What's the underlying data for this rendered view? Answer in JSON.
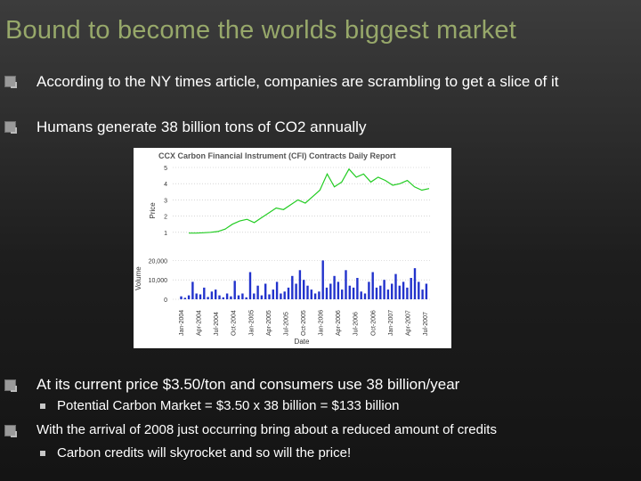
{
  "slide": {
    "title": "Bound to become the worlds biggest market",
    "bullets_top": [
      {
        "text": "According to the NY times article, companies are scrambling to get a slice of it"
      },
      {
        "text": "Humans generate 38 billion tons of CO2 annually"
      }
    ],
    "bullets_bottom": [
      {
        "text": "At its current price $3.50/ton and consumers use 38 billion/year"
      },
      {
        "text": "Potential Carbon Market = $3.50 x 38 billion = $133 billion"
      },
      {
        "text": "With the arrival of 2008 just occurring bring about a reduced amount of credits"
      },
      {
        "text": "Carbon credits will skyrocket and so will the price!"
      }
    ],
    "colors": {
      "title": "#97a86a",
      "price_line": "#22cc22",
      "volume_bars": "#2233cc",
      "bullet_marker": "#9a9a9a"
    }
  },
  "chart_data": {
    "type": "line",
    "title": "CCX Carbon Financial Instrument (CFI) Contracts Daily Report",
    "xlabel": "Date",
    "ylabel": "Price",
    "ylabel_volume": "Volume",
    "price_yticks": [
      "5",
      "4",
      "3",
      "2",
      "1"
    ],
    "price_ylim": [
      0,
      5
    ],
    "volume_yticks": [
      "20,000",
      "10,000",
      "0"
    ],
    "volume_ylim": [
      0,
      22000
    ],
    "x_tick_labels": [
      "Jan-2004",
      "Apr-2004",
      "Jul-2004",
      "Oct-2004",
      "Jan-2005",
      "Apr-2005",
      "Jul-2005",
      "Oct-2005",
      "Jan-2006",
      "Apr-2006",
      "Jul-2006",
      "Oct-2006",
      "Jan-2007",
      "Apr-2007",
      "Jul-2007"
    ],
    "series": [
      {
        "name": "Price",
        "values": [
          0.95,
          0.95,
          0.97,
          1.0,
          1.05,
          1.2,
          1.5,
          1.7,
          1.8,
          1.6,
          1.9,
          2.2,
          2.5,
          2.4,
          2.7,
          3.0,
          2.8,
          3.2,
          3.6,
          4.6,
          3.8,
          4.1,
          4.9,
          4.4,
          4.6,
          4.1,
          4.4,
          4.2,
          3.9,
          4.0,
          4.2,
          3.8,
          3.6,
          3.7
        ]
      },
      {
        "name": "Volume",
        "values": [
          0,
          1500,
          800,
          2000,
          9000,
          3000,
          2500,
          6000,
          1200,
          4000,
          5000,
          2000,
          1000,
          3000,
          1500,
          9500,
          2000,
          3000,
          1000,
          14000,
          3000,
          7000,
          2000,
          8000,
          2500,
          5000,
          9000,
          3000,
          4000,
          6000,
          12000,
          8000,
          15000,
          10000,
          7000,
          5000,
          3000,
          4000,
          20000,
          6000,
          8000,
          12000,
          9000,
          5000,
          15000,
          7000,
          6000,
          11000,
          4000,
          3000,
          9000,
          14000,
          6000,
          7000,
          10000,
          5000,
          8000,
          13000,
          7000,
          9000,
          6000,
          11000,
          16000,
          9000,
          5000,
          8000
        ]
      }
    ]
  }
}
